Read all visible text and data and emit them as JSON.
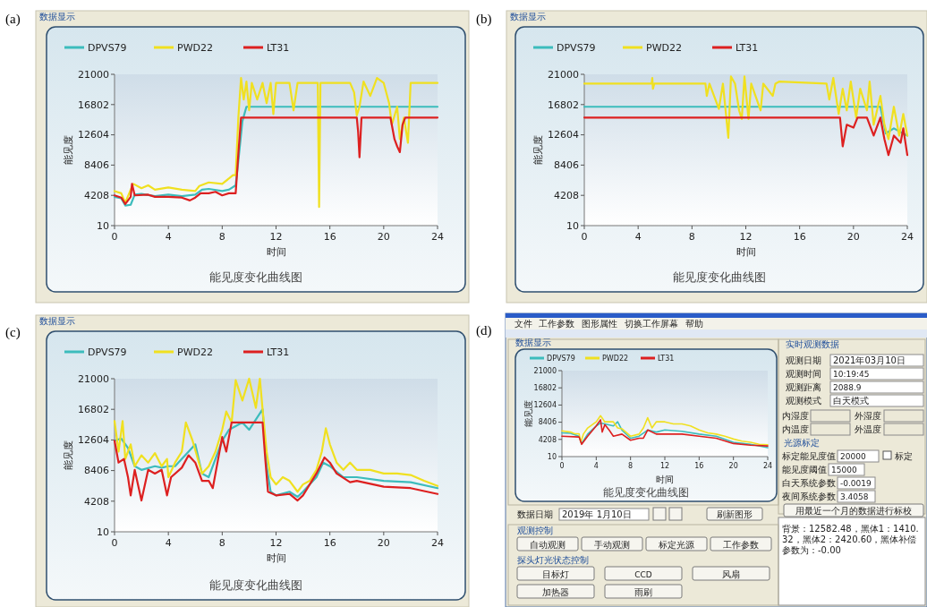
{
  "chart_data": [
    {
      "type": "line",
      "title": "能见度变化曲线图",
      "annotations": [
        "(a)",
        "数据显示"
      ],
      "xlabel": "时间",
      "ylabel": "能见度",
      "xlim": [
        0,
        24
      ],
      "ylim": [
        10,
        21000
      ],
      "xticks": [
        0,
        4,
        8,
        12,
        16,
        20,
        24
      ],
      "yticks": [
        10,
        4208,
        8406,
        12604,
        16802,
        21000
      ],
      "legend": "top left",
      "series": [
        {
          "name": "DPVS79",
          "color": "#3cbcbc",
          "x": [
            0,
            0.5,
            0.8,
            1.2,
            1.5,
            2,
            3,
            4,
            5,
            6,
            6.5,
            7,
            8,
            8.5,
            9,
            9.2,
            9.5,
            9.8,
            12,
            16,
            20,
            24
          ],
          "values": [
            4000,
            3800,
            2800,
            2900,
            4300,
            4400,
            4100,
            4300,
            4100,
            4300,
            5000,
            5100,
            4800,
            5000,
            5600,
            9000,
            14500,
            16500,
            16500,
            16500,
            16500,
            16500
          ]
        },
        {
          "name": "PWD22",
          "color": "#f0e020",
          "x": [
            0,
            0.5,
            0.8,
            1.2,
            1.4,
            2,
            2.5,
            3,
            4,
            5,
            6,
            6.3,
            7,
            8,
            8.8,
            9,
            9.2,
            9.4,
            9.6,
            9.8,
            10,
            10.2,
            10.6,
            11,
            11.3,
            11.6,
            11.8,
            12,
            13,
            13.3,
            13.6,
            14,
            15,
            15.1,
            15.2,
            15.3,
            17.5,
            17.8,
            18,
            18.2,
            18.5,
            19,
            19.5,
            20,
            20.4,
            20.6,
            21,
            21.2,
            21.5,
            21.8,
            22,
            24
          ],
          "values": [
            4800,
            4500,
            3200,
            5000,
            5800,
            5200,
            5600,
            5000,
            5300,
            5000,
            4800,
            5500,
            6000,
            5800,
            7000,
            7000,
            15000,
            20500,
            17500,
            20000,
            16000,
            19800,
            17500,
            19800,
            17000,
            19800,
            15500,
            19800,
            19800,
            16000,
            19800,
            19800,
            19800,
            19800,
            2600,
            19800,
            19800,
            18500,
            15300,
            16500,
            20000,
            18000,
            20500,
            19800,
            17000,
            14000,
            16500,
            12000,
            15000,
            11500,
            19800,
            19800
          ]
        },
        {
          "name": "LT31",
          "color": "#dd2020",
          "x": [
            0,
            0.5,
            0.8,
            1.2,
            1.3,
            1.5,
            2.5,
            3,
            4,
            5,
            5.6,
            6,
            6.4,
            7,
            7.5,
            8,
            8.5,
            9,
            9.2,
            9.4,
            18,
            18.1,
            18.2,
            18.35,
            20.5,
            20.8,
            21,
            21.2,
            21.4,
            21.6,
            24
          ],
          "values": [
            4200,
            3900,
            3000,
            4000,
            5800,
            4200,
            4300,
            4000,
            4000,
            3900,
            3500,
            3900,
            4500,
            4500,
            4700,
            4200,
            4500,
            4500,
            10000,
            15000,
            15000,
            13000,
            9500,
            15000,
            15000,
            12000,
            11000,
            10200,
            14000,
            15000,
            15000
          ]
        }
      ]
    },
    {
      "type": "line",
      "title": "能见度变化曲线图",
      "annotations": [
        "(b)",
        "数据显示"
      ],
      "xlabel": "时间",
      "ylabel": "能见度",
      "xlim": [
        0,
        24
      ],
      "ylim": [
        10,
        21000
      ],
      "xticks": [
        0,
        4,
        8,
        12,
        16,
        20,
        24
      ],
      "yticks": [
        10,
        4208,
        8406,
        12604,
        16802,
        21000
      ],
      "legend": "top left",
      "series": [
        {
          "name": "DPVS79",
          "color": "#3cbcbc",
          "x": [
            0,
            18.5,
            22,
            22.4,
            23,
            23.5,
            24
          ],
          "values": [
            16500,
            16500,
            16500,
            12800,
            13500,
            13000,
            12500
          ]
        },
        {
          "name": "PWD22",
          "color": "#f0e020",
          "x": [
            0,
            5,
            5.05,
            5.1,
            5.2,
            9,
            9.1,
            9.3,
            10,
            10.3,
            10.7,
            10.9,
            11.2,
            11.5,
            11.7,
            11.9,
            12.2,
            12.4,
            13.1,
            13.3,
            14,
            14.2,
            14.5,
            18,
            18.2,
            18.5,
            18.9,
            19.2,
            19.5,
            19.8,
            20.2,
            20.5,
            21,
            21.2,
            21.5,
            22,
            22.3,
            22.6,
            23,
            23.4,
            23.7,
            24
          ],
          "values": [
            19700,
            19700,
            20500,
            19000,
            19700,
            19700,
            18000,
            19700,
            16200,
            19700,
            12200,
            20700,
            19700,
            16000,
            14800,
            20700,
            14800,
            19700,
            16000,
            19700,
            18000,
            19700,
            20000,
            19700,
            17500,
            20500,
            15500,
            19000,
            16000,
            20000,
            15000,
            19000,
            16000,
            20000,
            14000,
            18000,
            14000,
            12000,
            16500,
            12500,
            15500,
            12500
          ]
        },
        {
          "name": "LT31",
          "color": "#dd2020",
          "x": [
            0,
            19,
            19.2,
            19.5,
            20,
            20.3,
            21,
            21.5,
            22,
            22.3,
            22.6,
            23,
            23.5,
            23.7,
            24
          ],
          "values": [
            15000,
            15000,
            11000,
            14000,
            13600,
            15000,
            15000,
            12500,
            15000,
            12000,
            9800,
            12500,
            11500,
            13500,
            9800
          ]
        }
      ]
    },
    {
      "type": "line",
      "title": "能见度变化曲线图",
      "annotations": [
        "(c)",
        "数据显示"
      ],
      "xlabel": "时间",
      "ylabel": "能见度",
      "xlim": [
        0,
        24
      ],
      "ylim": [
        10,
        21000
      ],
      "xticks": [
        0,
        4,
        8,
        12,
        16,
        20,
        24
      ],
      "yticks": [
        10,
        4208,
        8406,
        12604,
        16802,
        21000
      ],
      "legend": "top left",
      "series": [
        {
          "name": "DPVS79",
          "color": "#3cbcbc",
          "x": [
            0,
            0.5,
            1,
            1.5,
            2,
            3,
            3.5,
            4,
            4.5,
            5,
            5.5,
            6,
            6.5,
            7,
            8,
            8.5,
            9,
            9.5,
            10,
            11,
            11.3,
            11.6,
            12,
            13,
            13.6,
            14,
            15,
            15.5,
            16,
            17,
            18,
            20,
            22,
            24
          ],
          "values": [
            12500,
            12800,
            11500,
            9000,
            8500,
            9000,
            8800,
            9000,
            9000,
            10000,
            11000,
            12000,
            8000,
            7500,
            12500,
            14000,
            14500,
            15000,
            14000,
            16800,
            9000,
            5500,
            5000,
            5500,
            4800,
            5500,
            7500,
            9500,
            9000,
            7500,
            7500,
            7000,
            6800,
            6000
          ]
        },
        {
          "name": "PWD22",
          "color": "#f0e020",
          "x": [
            0,
            0.3,
            0.6,
            0.8,
            1.2,
            1.5,
            2,
            2.5,
            3,
            3.5,
            3.9,
            4,
            4.5,
            5,
            5.3,
            5.8,
            6.5,
            7,
            7.5,
            8,
            8.3,
            8.7,
            9,
            9.5,
            10,
            10.5,
            10.8,
            11,
            11.3,
            11.6,
            12,
            12.5,
            13,
            13.6,
            14,
            14.5,
            15,
            15.4,
            15.7,
            16,
            16.5,
            17,
            17.5,
            18,
            19,
            20,
            21,
            22,
            23,
            24
          ],
          "values": [
            15200,
            11000,
            15200,
            10000,
            12000,
            9000,
            10500,
            9500,
            10800,
            9000,
            10000,
            7500,
            9500,
            11000,
            15000,
            12500,
            8000,
            9000,
            11000,
            14000,
            16500,
            15000,
            20800,
            18000,
            21000,
            17000,
            21000,
            16800,
            11000,
            7500,
            6500,
            7500,
            7000,
            5500,
            6500,
            7000,
            8500,
            11000,
            14200,
            12000,
            9500,
            8500,
            9500,
            8500,
            8500,
            8000,
            8000,
            7800,
            7000,
            6300
          ]
        },
        {
          "name": "LT31",
          "color": "#dd2020",
          "x": [
            0,
            0.3,
            0.7,
            1,
            1.2,
            1.5,
            2,
            2.5,
            3,
            3.5,
            3.9,
            4.2,
            5,
            5.5,
            6,
            6.5,
            7,
            7.3,
            7.5,
            8,
            8.3,
            8.7,
            11,
            11.2,
            11.4,
            12,
            13,
            13.6,
            14,
            15,
            15.6,
            16,
            16.5,
            17.5,
            18,
            20,
            22,
            23,
            24
          ],
          "values": [
            12500,
            9500,
            10000,
            7500,
            5000,
            8500,
            4300,
            8500,
            8000,
            8500,
            5000,
            7500,
            8800,
            10500,
            9500,
            7000,
            7000,
            6000,
            8000,
            13000,
            11000,
            15000,
            15000,
            10000,
            5500,
            5000,
            5200,
            4300,
            5000,
            8000,
            10200,
            9500,
            8000,
            6800,
            7000,
            6200,
            6000,
            5600,
            5200
          ]
        }
      ]
    },
    {
      "type": "line",
      "title": "能见度变化曲线图",
      "annotations": [
        "数据显示"
      ],
      "xlabel": "时间",
      "ylabel": "能见度",
      "xlim": [
        0,
        24
      ],
      "ylim": [
        10,
        21000
      ],
      "xticks": [
        0,
        4,
        8,
        12,
        16,
        20,
        24
      ],
      "yticks": [
        10,
        4208,
        8406,
        12604,
        16802,
        21000
      ],
      "legend": "top left",
      "series": [
        {
          "name": "DPVS79",
          "color": "#3cbcbc",
          "x": [
            0,
            1,
            2,
            2.3,
            3,
            4,
            4.5,
            5,
            6,
            6.5,
            7,
            8,
            9,
            10,
            11,
            12,
            14,
            16,
            18,
            20,
            22,
            24
          ],
          "values": [
            5800,
            5700,
            5000,
            3200,
            5500,
            7500,
            8200,
            8000,
            7500,
            8500,
            6500,
            4500,
            5000,
            6500,
            6000,
            6500,
            6200,
            5500,
            5000,
            3500,
            3000,
            2200
          ]
        },
        {
          "name": "PWD22",
          "color": "#f0e020",
          "x": [
            0,
            1,
            1.5,
            2,
            2.2,
            2.5,
            3,
            4,
            4.5,
            5,
            5.5,
            6,
            6.5,
            7,
            8,
            9,
            9.5,
            10,
            10.5,
            11,
            12,
            13,
            14,
            15,
            16,
            17,
            18,
            19,
            20,
            21,
            22,
            23,
            24
          ],
          "values": [
            6300,
            6000,
            5600,
            5600,
            3500,
            5500,
            7000,
            8500,
            10000,
            8500,
            8500,
            8500,
            7000,
            6800,
            5000,
            5500,
            7000,
            9500,
            7000,
            8500,
            8500,
            8000,
            8000,
            7500,
            6500,
            5800,
            5500,
            5000,
            4300,
            3800,
            3500,
            3000,
            2900
          ]
        },
        {
          "name": "LT31",
          "color": "#dd2020",
          "x": [
            0,
            2,
            2.3,
            3,
            4,
            4.5,
            4.7,
            5,
            5.5,
            6,
            7,
            8,
            9,
            9.5,
            10,
            11,
            12,
            14,
            16,
            18,
            20,
            22,
            24
          ],
          "values": [
            5000,
            4800,
            3000,
            5000,
            7500,
            9000,
            6000,
            7800,
            6500,
            5000,
            5500,
            4000,
            4500,
            4500,
            6500,
            5500,
            5500,
            5500,
            5000,
            4500,
            3200,
            2800,
            2600
          ]
        }
      ]
    },
    {
      "type": "other",
      "annotations": [
        "(d)",
        "文件",
        "工作参数",
        "图形属性",
        "切换工作屏幕",
        "帮助",
        "实时观测数据",
        "观测日期",
        "2021年03月10日",
        "观测时间",
        "10:19:45",
        "观测距离",
        "2088.9",
        "观测模式",
        "白天模式",
        "内湿度",
        "外湿度",
        "内温度",
        "外温度",
        "光源标定",
        "标定能见度值",
        "20000",
        "标定",
        "能见度阈值",
        "15000",
        "白天系统参数",
        "-0.0019",
        "夜间系统参数",
        "3.4058",
        "用最近一个月的数据进行标校",
        "背景：12582.48，黑体1：1410.32，黑体2：2420.60，黑体补偿参数为：-0.00",
        "数据日期",
        "2019年 1月10日",
        "刷新图形",
        "观测控制",
        "自动观测",
        "手动观测",
        "标定光源",
        "工作参数",
        "探头灯光状态控制",
        "目标灯",
        "CCD",
        "风扇",
        "加热器",
        "雨刷"
      ]
    }
  ]
}
